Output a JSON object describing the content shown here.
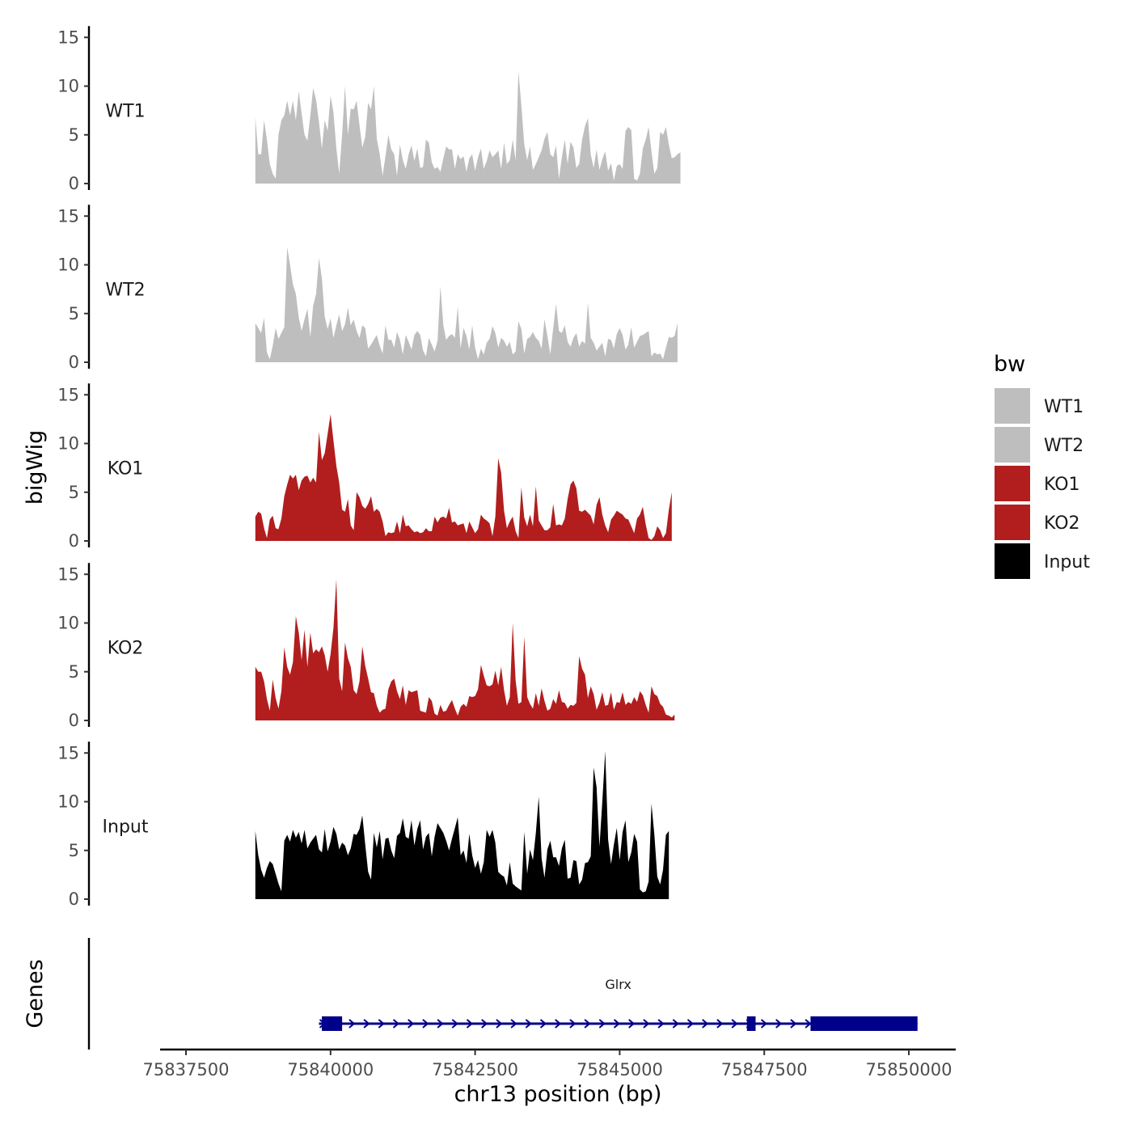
{
  "chart_data": [
    {
      "type": "area",
      "panel": "coverage",
      "y_axis_title": "bigWig",
      "ylim": [
        0,
        15.5
      ],
      "y_ticks": [
        "0",
        "5",
        "10",
        "15"
      ],
      "x_range": [
        75838700,
        75850100
      ],
      "series": [
        {
          "name": "WT1",
          "color": "#bebebe",
          "x_start": 75838700,
          "x_step": 50,
          "values": [
            6.8,
            3,
            3,
            6.5,
            4.5,
            2,
            1,
            0.5,
            5,
            6.5,
            7,
            8.5,
            7,
            8.5,
            6.5,
            9.5,
            7.2,
            5,
            4.4,
            7,
            9.8,
            8.6,
            6.3,
            3.6,
            6.5,
            5.4,
            9,
            7.3,
            3.6,
            1,
            5,
            10,
            5,
            7.7,
            7.6,
            8.5,
            6,
            3.7,
            4.8,
            8.3,
            7.6,
            10,
            4.6,
            3,
            0.8,
            2.8,
            5,
            3.5,
            3,
            0.8,
            4,
            2.4,
            1.5,
            3,
            3.9,
            2.3,
            3.6,
            1.6,
            1.7,
            4.5,
            4.2,
            2.2,
            1.5,
            1.7,
            1.2,
            2.6,
            3.8,
            3.5,
            3.5,
            1.5,
            3,
            2.5,
            2.8,
            1.2,
            2.6,
            3,
            1.3,
            2.7,
            3.6,
            1.5,
            2.3,
            3.4,
            2.7,
            3,
            3.4,
            1.5,
            4.2,
            2,
            2.4,
            4.5,
            2.4,
            11.5,
            8,
            4,
            2.4,
            3.8,
            1.4,
            2,
            2.7,
            3.4,
            4.6,
            5.3,
            3,
            2.7,
            3.9,
            0.5,
            2.7,
            4.5,
            2,
            4.3,
            3.7,
            1.6,
            2,
            4.5,
            5.9,
            6.7,
            3,
            1.6,
            3.5,
            1.4,
            2.5,
            3.3,
            1.3,
            2.1,
            0.3,
            1.8,
            2,
            1.5,
            5.4,
            5.8,
            5.5,
            0.5,
            0.3,
            1,
            3.6,
            4.5,
            5.8,
            3.3,
            1,
            1.6,
            5.3,
            5,
            5.8,
            4,
            2.6,
            2.7,
            3,
            3.2
          ]
        },
        {
          "name": "WT2",
          "color": "#bebebe",
          "x_start": 75838700,
          "x_step": 50,
          "values": [
            4,
            3.5,
            3,
            4.6,
            1,
            0.3,
            1.7,
            3.5,
            2.4,
            3,
            3.6,
            11.8,
            10,
            8,
            7,
            4.6,
            3.2,
            4.4,
            5.5,
            2.6,
            5.8,
            7,
            10.7,
            8.6,
            4.7,
            3.4,
            4.5,
            2.5,
            3.8,
            4.9,
            3.2,
            3.9,
            5.6,
            3.8,
            4.4,
            3.2,
            2.5,
            3.8,
            3.5,
            1.4,
            1.8,
            2.3,
            2.8,
            1.7,
            0.9,
            3.8,
            2.3,
            2.3,
            1.5,
            3.1,
            2.3,
            0.8,
            2.8,
            2.1,
            1.3,
            2.8,
            3.2,
            2.8,
            1.2,
            0.6,
            2.5,
            1.8,
            1.1,
            2.2,
            7.8,
            3.8,
            2.3,
            2.7,
            2.9,
            2.5,
            5.7,
            1.4,
            3.5,
            2.7,
            1.3,
            3.8,
            1.5,
            0.3,
            1.4,
            0.8,
            2,
            2.4,
            3.7,
            3,
            1.5,
            2.5,
            2.2,
            1.6,
            2.1,
            0.8,
            1.1,
            4.2,
            3.4,
            0.9,
            2.4,
            2.6,
            3.1,
            2.5,
            2.2,
            1.4,
            4.4,
            2.7,
            0.8,
            3.5,
            6,
            3.2,
            3,
            3.8,
            2.1,
            1.6,
            2.5,
            3,
            1.6,
            2.2,
            1.9,
            6.1,
            2.5,
            2,
            1.2,
            1.6,
            2,
            0.6,
            2.4,
            2.3,
            1.4,
            2.9,
            3.5,
            2.8,
            1.3,
            1.8,
            3.6,
            1.5,
            2.1,
            2.7,
            2.8,
            3,
            3.2,
            0.6,
            1,
            0.8,
            0.9,
            0.3,
            1.5,
            2.6,
            2.5,
            2.7,
            4
          ]
        },
        {
          "name": "KO1",
          "color": "#b21e1e",
          "x_start": 75838700,
          "x_step": 50,
          "values": [
            2.5,
            3,
            2.8,
            1.3,
            0.3,
            2.2,
            2.6,
            1.3,
            1.2,
            2.3,
            4.6,
            5.8,
            6.8,
            6.4,
            6.8,
            5.2,
            6.2,
            6.6,
            6.7,
            6,
            6.5,
            6,
            11.2,
            8.3,
            9,
            11,
            13,
            10.3,
            7.7,
            6,
            3.2,
            3,
            4.3,
            1.6,
            1.1,
            5,
            4.5,
            3.6,
            3.3,
            3.8,
            4.6,
            3,
            3.3,
            3,
            2,
            0.5,
            0.9,
            0.8,
            0.9,
            2,
            0.8,
            2.7,
            1.5,
            1.6,
            1.2,
            0.9,
            1,
            0.8,
            0.9,
            1.3,
            1,
            1,
            2.5,
            1.9,
            2.4,
            2.5,
            2.3,
            3.4,
            1.9,
            2,
            1.6,
            1.7,
            1.8,
            0.8,
            2,
            1.4,
            0.8,
            1.2,
            2.7,
            2.3,
            2.1,
            1.8,
            0.5,
            2.5,
            8.5,
            7,
            3.1,
            1.3,
            2,
            2.5,
            1,
            0.3,
            5.5,
            2.4,
            1.5,
            2.7,
            1.5,
            5.6,
            2.1,
            1.6,
            1.1,
            1.1,
            1.4,
            3.8,
            1.6,
            1.7,
            1.6,
            2.3,
            4.3,
            5.8,
            6.2,
            5.4,
            3.1,
            3,
            3.2,
            2.9,
            2.6,
            1.7,
            3.7,
            4.5,
            2.7,
            1.6,
            0.9,
            2.2,
            2.6,
            3.1,
            2.9,
            2.7,
            2.3,
            2.2,
            1.5,
            0.8,
            2.3,
            2.7,
            3.5,
            1.7,
            0.3,
            0.1,
            0.5,
            1.5,
            1.1,
            0.3,
            0.8,
            3.2,
            5
          ]
        },
        {
          "name": "KO2",
          "color": "#b21e1e",
          "x_start": 75838700,
          "x_step": 50,
          "values": [
            5.5,
            5,
            5,
            4,
            2.2,
            1,
            4.2,
            2.3,
            1.2,
            3,
            7.5,
            5.5,
            4.7,
            6,
            10.7,
            9,
            6.2,
            9.3,
            5.5,
            9,
            6.9,
            7.3,
            7,
            7.6,
            6.7,
            5,
            6.8,
            9.5,
            14.5,
            4.3,
            3,
            8,
            6.4,
            5.5,
            3.1,
            2.7,
            4,
            7.6,
            5.6,
            4.3,
            2.9,
            2.8,
            1.5,
            0.8,
            1.1,
            1.2,
            3.2,
            4,
            4.3,
            3,
            2.2,
            3.6,
            1.6,
            3.1,
            2.9,
            3,
            3.1,
            1,
            0.9,
            0.8,
            2.4,
            2,
            0.7,
            0.5,
            1.6,
            0.9,
            1,
            1.6,
            2.1,
            1.2,
            0.5,
            1.4,
            1.7,
            1.4,
            2.5,
            2.4,
            2.5,
            3.2,
            5.7,
            4.6,
            3.6,
            3.5,
            3.7,
            5.1,
            3.6,
            5.5,
            3.1,
            1.5,
            2.4,
            10,
            4.1,
            1.7,
            1.9,
            8.6,
            2.4,
            1.7,
            1.2,
            2.8,
            1.5,
            3.3,
            2,
            1,
            1.2,
            2.2,
            1.7,
            3.1,
            1.9,
            1.8,
            1.2,
            1.6,
            1.5,
            1.8,
            6.6,
            5.3,
            4.7,
            2.3,
            3.5,
            2.7,
            1.1,
            1.8,
            2.9,
            1.5,
            1.6,
            2.9,
            1.1,
            1.9,
            1.8,
            2.9,
            1.6,
            1.9,
            1.7,
            2.4,
            1.9,
            3,
            2.6,
            1.6,
            0.8,
            3.5,
            2.7,
            2.5,
            1.7,
            1.4,
            0.6,
            0.5,
            0.3,
            0.6
          ]
        },
        {
          "name": "Input",
          "color": "#000000",
          "x_start": 75838700,
          "x_step": 50,
          "values": [
            7,
            4.5,
            3,
            2.2,
            3.2,
            3.9,
            3.6,
            2.6,
            1.6,
            0.8,
            6,
            6.6,
            5.9,
            7.1,
            6.3,
            6.9,
            5.7,
            7.1,
            5.2,
            5.8,
            6.2,
            6.6,
            5.1,
            4.8,
            7.2,
            4.9,
            5.9,
            7.4,
            6.7,
            5.1,
            5.8,
            5.5,
            4.5,
            5.2,
            6.7,
            6.6,
            7.2,
            8.6,
            5.6,
            2.8,
            2,
            6.8,
            5.3,
            7,
            4.1,
            6.2,
            6.3,
            5,
            4.2,
            6.5,
            6.8,
            8.3,
            6.4,
            6.2,
            8.1,
            5.5,
            7.2,
            8.1,
            5.1,
            6.4,
            6.8,
            4.4,
            6.4,
            7.8,
            7.3,
            6.8,
            6,
            5,
            6.2,
            7.3,
            8.4,
            4.5,
            5,
            3.7,
            6.7,
            4.5,
            3.2,
            4,
            2.6,
            3.8,
            7.1,
            6.4,
            7.1,
            5.8,
            2.8,
            2.5,
            2.3,
            1.4,
            3.8,
            1.6,
            1.3,
            1.1,
            0.9,
            6.9,
            2.6,
            5.1,
            4,
            6.8,
            10.5,
            4.2,
            2.2,
            5.1,
            6,
            4.3,
            4.3,
            3.4,
            5.2,
            6.1,
            2.1,
            2.2,
            4,
            3.9,
            1.5,
            2,
            3.7,
            3.8,
            4.4,
            13.5,
            11.5,
            5.4,
            10,
            15.2,
            6.1,
            3.6,
            5.6,
            7.3,
            4,
            6.9,
            8.1,
            3.8,
            4.8,
            6.7,
            5.9,
            1,
            0.7,
            0.8,
            1.8,
            9.8,
            6.6,
            2.3,
            1.5,
            3,
            6.6,
            7
          ]
        }
      ],
      "track_labels": [
        "WT1",
        "WT2",
        "KO1",
        "KO2",
        "Input"
      ]
    },
    {
      "type": "gene-track",
      "panel": "genes",
      "y_axis_title": "Genes",
      "x_axis_title": "chr13 position (bp)",
      "x_ticks": [
        "75837500",
        "75840000",
        "75842500",
        "75845000",
        "75847500",
        "75850000"
      ],
      "x_tick_values": [
        75837500,
        75840000,
        75842500,
        75845000,
        75847500,
        75850000
      ],
      "gene": {
        "name": "Glrx",
        "color": "#00008b",
        "strand": "+",
        "start": 75839800,
        "end": 75850150,
        "exons": [
          [
            75839850,
            75840200
          ],
          [
            75847200,
            75847350
          ],
          [
            75848300,
            75850150
          ]
        ]
      }
    }
  ],
  "legend": {
    "title": "bw",
    "entries": [
      {
        "label": "WT1",
        "color": "#bebebe"
      },
      {
        "label": "WT2",
        "color": "#bebebe"
      },
      {
        "label": "KO1",
        "color": "#b21e1e"
      },
      {
        "label": "KO2",
        "color": "#b21e1e"
      },
      {
        "label": "Input",
        "color": "#000000"
      }
    ]
  }
}
